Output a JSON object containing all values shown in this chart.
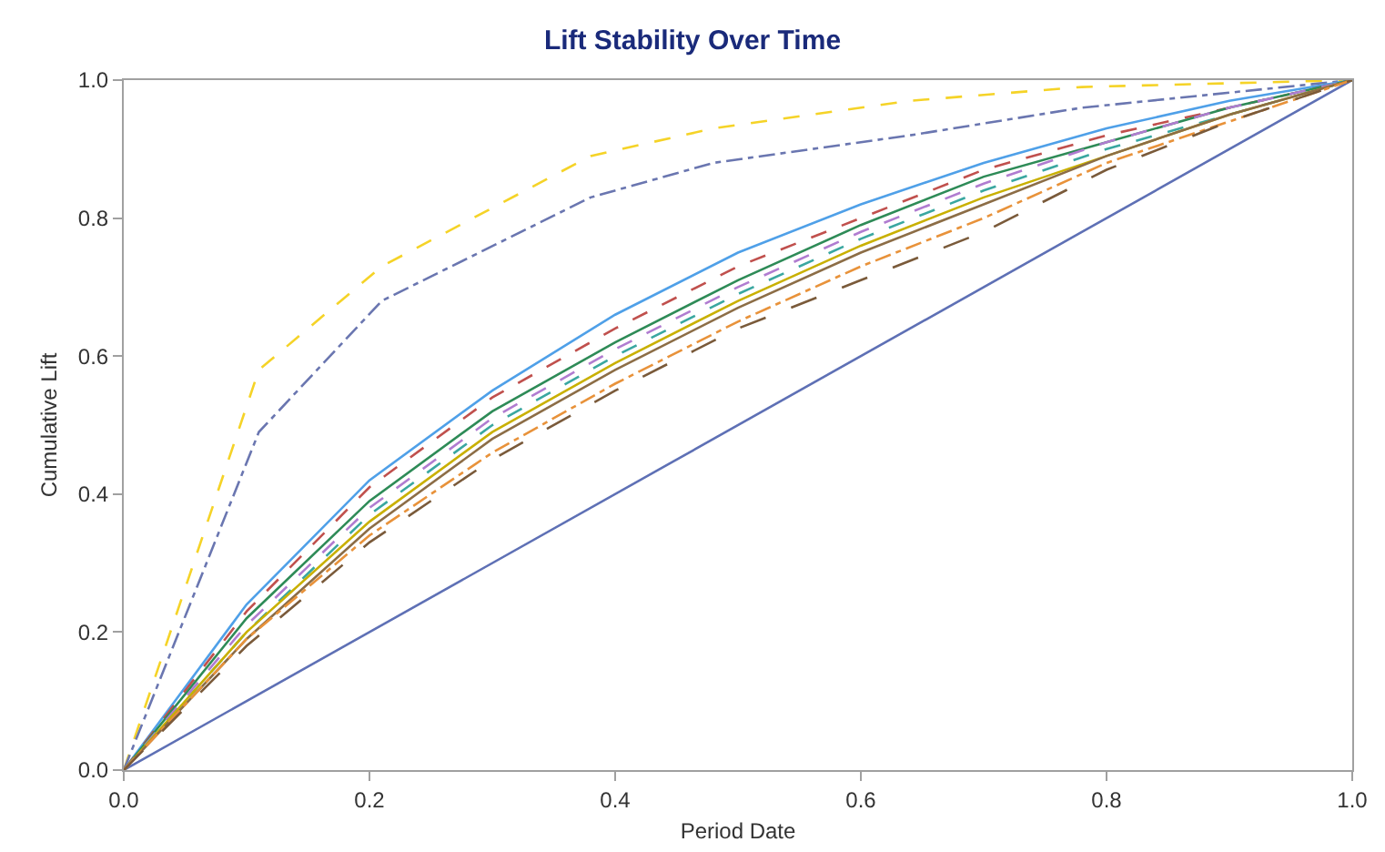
{
  "chart_data": {
    "type": "line",
    "title": "Lift Stability Over Time",
    "xlabel": "Period Date",
    "ylabel": "Cumulative Lift",
    "xlim": [
      0,
      1
    ],
    "ylim": [
      0,
      1
    ],
    "xticks": [
      {
        "value": 0,
        "label": "0.0"
      },
      0.2,
      0.4,
      0.6,
      0.8,
      {
        "value": 1,
        "label": "1.0"
      }
    ],
    "yticks": [
      {
        "value": 0,
        "label": "0.0"
      },
      0.2,
      0.4,
      0.6,
      0.8,
      {
        "value": 1,
        "label": "1.0"
      }
    ],
    "grid": false,
    "marker": "none",
    "series": [
      {
        "color": "#f5d327",
        "line_style": "dashed",
        "x": [
          0,
          0.11,
          0.21,
          0.38,
          0.48,
          0.64,
          0.78,
          1
        ],
        "values": [
          0,
          0.58,
          0.73,
          0.89,
          0.93,
          0.97,
          0.99,
          1
        ]
      },
      {
        "color": "#6a76b0",
        "line_style": "dashdot",
        "x": [
          0,
          0.11,
          0.21,
          0.38,
          0.48,
          0.64,
          0.78,
          1
        ],
        "values": [
          0,
          0.49,
          0.68,
          0.83,
          0.88,
          0.92,
          0.96,
          1
        ]
      },
      {
        "color": "#5e70b5",
        "line_style": "solid",
        "x": [
          0,
          1
        ],
        "values": [
          0,
          1
        ]
      },
      {
        "color": "#4fa0e8",
        "line_style": "solid",
        "x": [
          0,
          0.1,
          0.2,
          0.3,
          0.4,
          0.5,
          0.6,
          0.7,
          0.8,
          0.9,
          1
        ],
        "values": [
          0,
          0.24,
          0.42,
          0.55,
          0.66,
          0.75,
          0.82,
          0.88,
          0.93,
          0.97,
          1
        ]
      },
      {
        "color": "#c0504d",
        "line_style": "dashed",
        "x": [
          0,
          0.1,
          0.2,
          0.3,
          0.4,
          0.5,
          0.6,
          0.7,
          0.8,
          0.9,
          1
        ],
        "values": [
          0,
          0.23,
          0.41,
          0.54,
          0.64,
          0.73,
          0.8,
          0.87,
          0.92,
          0.96,
          1
        ]
      },
      {
        "color": "#2e8b57",
        "line_style": "solid",
        "x": [
          0,
          0.1,
          0.2,
          0.3,
          0.4,
          0.5,
          0.6,
          0.7,
          0.8,
          0.9,
          1
        ],
        "values": [
          0,
          0.22,
          0.39,
          0.52,
          0.62,
          0.71,
          0.79,
          0.86,
          0.91,
          0.96,
          1
        ]
      },
      {
        "color": "#b07cd0",
        "line_style": "dashed",
        "x": [
          0,
          0.1,
          0.2,
          0.3,
          0.4,
          0.5,
          0.6,
          0.7,
          0.8,
          0.9,
          1
        ],
        "values": [
          0,
          0.21,
          0.38,
          0.51,
          0.61,
          0.7,
          0.78,
          0.85,
          0.91,
          0.96,
          1
        ]
      },
      {
        "color": "#3aa7a0",
        "line_style": "dashed",
        "x": [
          0,
          0.1,
          0.2,
          0.3,
          0.4,
          0.5,
          0.6,
          0.7,
          0.8,
          0.9,
          1
        ],
        "values": [
          0,
          0.2,
          0.37,
          0.5,
          0.6,
          0.69,
          0.77,
          0.84,
          0.9,
          0.95,
          1
        ]
      },
      {
        "color": "#c9b000",
        "line_style": "solid",
        "x": [
          0,
          0.1,
          0.2,
          0.3,
          0.4,
          0.5,
          0.6,
          0.7,
          0.8,
          0.9,
          1
        ],
        "values": [
          0,
          0.2,
          0.36,
          0.49,
          0.59,
          0.68,
          0.76,
          0.83,
          0.89,
          0.95,
          1
        ]
      },
      {
        "color": "#8c6d46",
        "line_style": "solid",
        "x": [
          0,
          0.1,
          0.2,
          0.3,
          0.4,
          0.5,
          0.6,
          0.7,
          0.8,
          0.9,
          1
        ],
        "values": [
          0,
          0.19,
          0.35,
          0.48,
          0.58,
          0.67,
          0.75,
          0.82,
          0.89,
          0.95,
          1
        ]
      },
      {
        "color": "#e8923a",
        "line_style": "dashdot",
        "x": [
          0,
          0.1,
          0.2,
          0.3,
          0.4,
          0.5,
          0.6,
          0.7,
          0.8,
          0.9,
          1
        ],
        "values": [
          0,
          0.19,
          0.34,
          0.46,
          0.56,
          0.65,
          0.73,
          0.8,
          0.88,
          0.94,
          1
        ]
      },
      {
        "color": "#7a5a3a",
        "line_style": "longdash",
        "x": [
          0,
          0.1,
          0.2,
          0.3,
          0.4,
          0.5,
          0.6,
          0.7,
          0.8,
          0.9,
          1
        ],
        "values": [
          0,
          0.18,
          0.33,
          0.45,
          0.55,
          0.64,
          0.71,
          0.78,
          0.87,
          0.94,
          1
        ]
      }
    ]
  }
}
